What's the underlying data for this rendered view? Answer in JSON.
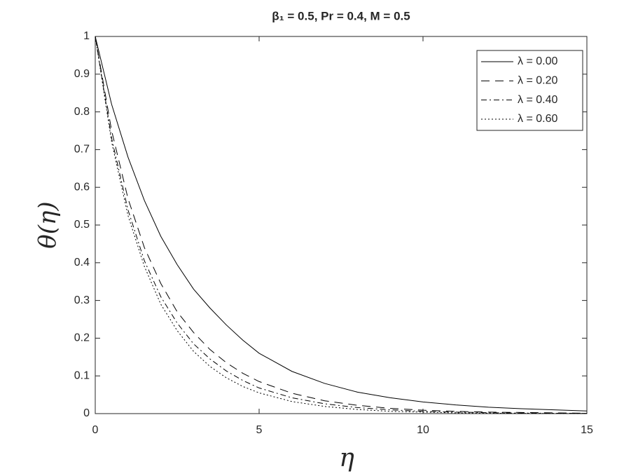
{
  "chart_data": {
    "type": "line",
    "title": "β₁ = 0.5, Pr = 0.4, M = 0.5",
    "x_label": "η",
    "y_label": "θ(η)",
    "x": [
      0,
      0.5,
      1,
      1.5,
      2,
      2.5,
      3,
      3.5,
      4,
      4.5,
      5,
      6,
      7,
      8,
      9,
      10,
      11,
      12,
      13,
      14,
      15
    ],
    "series": [
      {
        "name": "λ = 0.00",
        "color": "#000000",
        "dash": "none",
        "values": [
          1,
          0.82,
          0.68,
          0.565,
          0.47,
          0.395,
          0.33,
          0.28,
          0.235,
          0.195,
          0.16,
          0.112,
          0.08,
          0.057,
          0.042,
          0.031,
          0.023,
          0.017,
          0.013,
          0.01,
          0.007
        ]
      },
      {
        "name": "λ = 0.20",
        "color": "#000000",
        "dash": "12,8",
        "values": [
          1,
          0.75,
          0.57,
          0.44,
          0.345,
          0.27,
          0.215,
          0.17,
          0.135,
          0.107,
          0.085,
          0.054,
          0.034,
          0.022,
          0.014,
          0.009,
          0.006,
          0.004,
          0.003,
          0.002,
          0.001
        ]
      },
      {
        "name": "λ = 0.40",
        "color": "#000000",
        "dash": "8,4,2,4",
        "values": [
          1,
          0.73,
          0.54,
          0.405,
          0.31,
          0.24,
          0.185,
          0.145,
          0.113,
          0.088,
          0.068,
          0.042,
          0.026,
          0.016,
          0.01,
          0.006,
          0.004,
          0.0025,
          0.0015,
          0.001,
          0.0006
        ]
      },
      {
        "name": "λ = 0.60",
        "color": "#000000",
        "dash": "2,3",
        "values": [
          1,
          0.72,
          0.525,
          0.39,
          0.29,
          0.22,
          0.165,
          0.125,
          0.095,
          0.072,
          0.055,
          0.032,
          0.019,
          0.011,
          0.006,
          0.004,
          0.002,
          0.0012,
          0.0007,
          0.0004,
          0.0002
        ]
      }
    ],
    "xlim": [
      0,
      15
    ],
    "xticks": [
      0,
      5,
      10,
      15
    ],
    "ylim": [
      0,
      1
    ],
    "yticks": [
      0,
      0.1,
      0.2,
      0.3,
      0.4,
      0.5,
      0.6,
      0.7,
      0.8,
      0.9,
      1
    ],
    "legend": "top-right",
    "grid": false
  }
}
